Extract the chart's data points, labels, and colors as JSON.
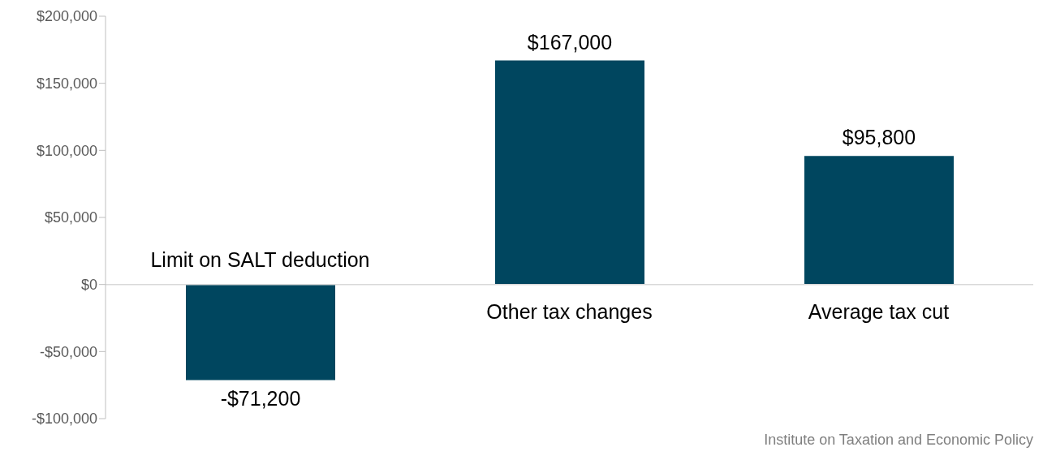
{
  "chart_data": {
    "type": "bar",
    "categories": [
      "Limit on SALT deduction",
      "Other tax changes",
      "Average tax cut"
    ],
    "values": [
      -71200,
      167000,
      95800
    ],
    "value_labels": [
      "-$71,200",
      "$167,000",
      "$95,800"
    ],
    "color": "#00465f",
    "ylim": [
      -100000,
      200000
    ],
    "yticks": [
      {
        "value": -100000,
        "label": "-$100,000"
      },
      {
        "value": -50000,
        "label": "-$50,000"
      },
      {
        "value": 0,
        "label": "$0"
      },
      {
        "value": 50000,
        "label": "$50,000"
      },
      {
        "value": 100000,
        "label": "$100,000"
      },
      {
        "value": 150000,
        "label": "$150,000"
      },
      {
        "value": 200000,
        "label": "$200,000"
      }
    ],
    "annotations": [
      "Institute on Taxation and Economic Policy"
    ]
  }
}
